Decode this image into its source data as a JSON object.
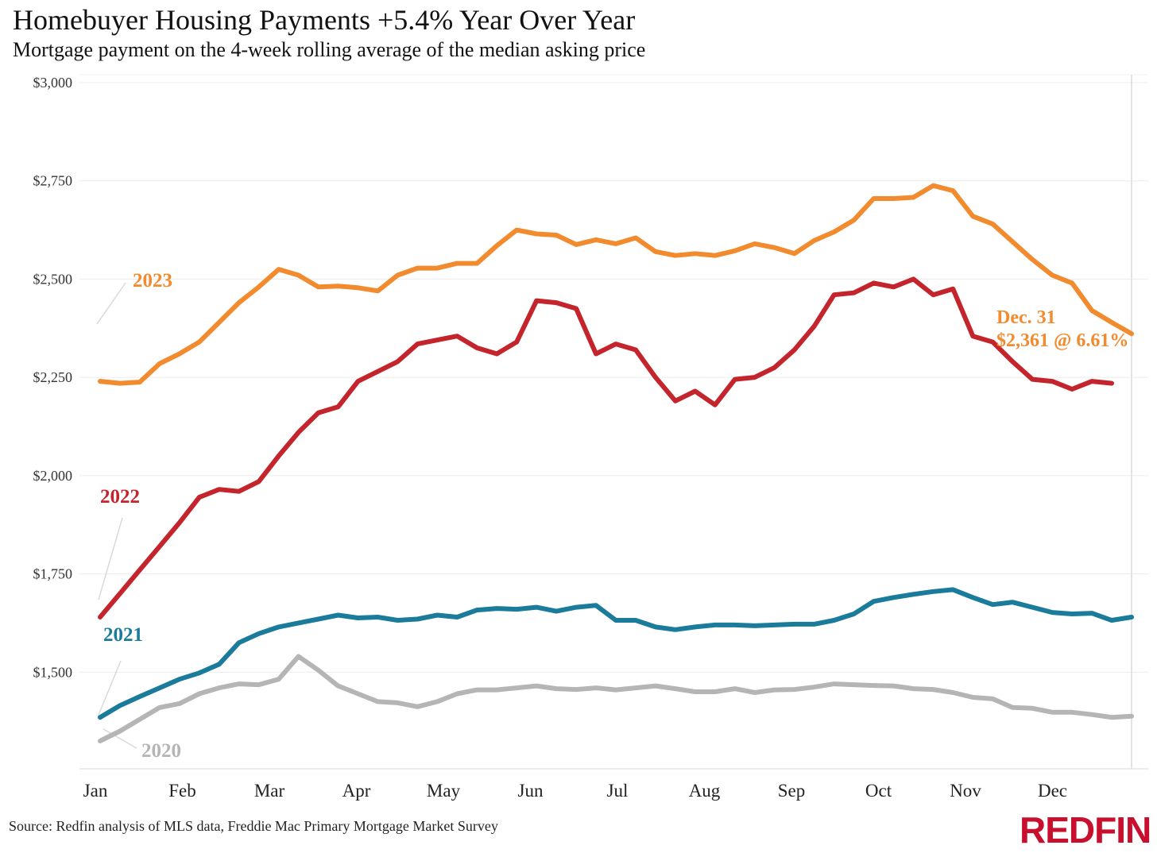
{
  "title": "Homebuyer Housing Payments +5.4% Year Over Year",
  "subtitle": "Mortgage payment on the 4-week rolling average of the median asking price",
  "source": "Source: Redfin analysis of MLS data, Freddie Mac Primary Mortgage Market Survey",
  "logo": "REDFIN",
  "chart_data": {
    "type": "line",
    "title": "Homebuyer Housing Payments +5.4% Year Over Year",
    "subtitle": "Mortgage payment on the 4-week rolling average of the median asking price",
    "xlabel": "",
    "ylabel": "",
    "x_ticks": [
      "Jan",
      "Feb",
      "Mar",
      "Apr",
      "May",
      "Jun",
      "Jul",
      "Aug",
      "Sep",
      "Oct",
      "Nov",
      "Dec"
    ],
    "y_ticks": [
      "$1,500",
      "$1,750",
      "$2,000",
      "$2,250",
      "$2,500",
      "$2,750",
      "$3,000"
    ],
    "y_tick_values": [
      1500,
      1750,
      2000,
      2250,
      2500,
      2750,
      3000
    ],
    "ylim": [
      1250,
      3000
    ],
    "x_unit": "week of year",
    "xlim": [
      1,
      53
    ],
    "grid": true,
    "series": [
      {
        "name": "2020",
        "color": "#b5b5b5",
        "x": [
          1,
          2,
          3,
          4,
          5,
          6,
          7,
          8,
          9,
          10,
          11,
          12,
          13,
          14,
          15,
          16,
          17,
          18,
          19,
          20,
          21,
          22,
          23,
          24,
          25,
          26,
          27,
          28,
          29,
          30,
          31,
          32,
          33,
          34,
          35,
          36,
          37,
          38,
          39,
          40,
          41,
          42,
          43,
          44,
          45,
          46,
          47,
          48,
          49,
          50,
          51,
          52,
          53
        ],
        "values": [
          1325,
          1350,
          1380,
          1410,
          1420,
          1445,
          1460,
          1470,
          1468,
          1482,
          1540,
          1505,
          1465,
          1445,
          1425,
          1422,
          1412,
          1425,
          1445,
          1455,
          1455,
          1460,
          1465,
          1458,
          1456,
          1460,
          1455,
          1460,
          1465,
          1458,
          1450,
          1450,
          1458,
          1448,
          1455,
          1456,
          1462,
          1470,
          1468,
          1466,
          1465,
          1458,
          1456,
          1448,
          1436,
          1432,
          1410,
          1408,
          1398,
          1398,
          1392,
          1385,
          1388
        ]
      },
      {
        "name": "2021",
        "color": "#1b7b9a",
        "x": [
          1,
          2,
          3,
          4,
          5,
          6,
          7,
          8,
          9,
          10,
          11,
          12,
          13,
          14,
          15,
          16,
          17,
          18,
          19,
          20,
          21,
          22,
          23,
          24,
          25,
          26,
          27,
          28,
          29,
          30,
          31,
          32,
          33,
          34,
          35,
          36,
          37,
          38,
          39,
          40,
          41,
          42,
          43,
          44,
          45,
          46,
          47,
          48,
          49,
          50,
          51,
          52,
          53
        ],
        "values": [
          1385,
          1415,
          1438,
          1460,
          1482,
          1498,
          1520,
          1575,
          1598,
          1615,
          1625,
          1635,
          1645,
          1638,
          1640,
          1632,
          1635,
          1645,
          1640,
          1658,
          1662,
          1660,
          1665,
          1655,
          1665,
          1670,
          1632,
          1632,
          1615,
          1608,
          1615,
          1620,
          1620,
          1618,
          1620,
          1622,
          1622,
          1632,
          1648,
          1680,
          1690,
          1698,
          1705,
          1710,
          1690,
          1672,
          1678,
          1665,
          1652,
          1648,
          1650,
          1632,
          1640
        ]
      },
      {
        "name": "2022",
        "color": "#c4242b",
        "x": [
          1,
          2,
          3,
          4,
          5,
          6,
          7,
          8,
          9,
          10,
          11,
          12,
          13,
          14,
          15,
          16,
          17,
          18,
          19,
          20,
          21,
          22,
          23,
          24,
          25,
          26,
          27,
          28,
          29,
          30,
          31,
          32,
          33,
          34,
          35,
          36,
          37,
          38,
          39,
          40,
          41,
          42,
          43,
          44,
          45,
          46,
          47,
          48,
          49,
          50,
          51,
          52
        ],
        "values": [
          1640,
          1700,
          1760,
          1820,
          1880,
          1945,
          1965,
          1960,
          1985,
          2050,
          2110,
          2160,
          2175,
          2240,
          2265,
          2290,
          2335,
          2345,
          2355,
          2325,
          2310,
          2340,
          2445,
          2440,
          2425,
          2310,
          2335,
          2320,
          2250,
          2190,
          2215,
          2180,
          2245,
          2250,
          2275,
          2320,
          2380,
          2460,
          2465,
          2490,
          2480,
          2500,
          2460,
          2475,
          2355,
          2340,
          2290,
          2245,
          2240,
          2220,
          2240,
          2235
        ]
      },
      {
        "name": "2023",
        "color": "#f28a2e",
        "x": [
          1,
          2,
          3,
          4,
          5,
          6,
          7,
          8,
          9,
          10,
          11,
          12,
          13,
          14,
          15,
          16,
          17,
          18,
          19,
          20,
          21,
          22,
          23,
          24,
          25,
          26,
          27,
          28,
          29,
          30,
          31,
          32,
          33,
          34,
          35,
          36,
          37,
          38,
          39,
          40,
          41,
          42,
          43,
          44,
          45,
          46,
          47,
          48,
          49,
          50,
          51,
          52,
          53
        ],
        "values": [
          2240,
          2235,
          2238,
          2285,
          2310,
          2340,
          2390,
          2440,
          2480,
          2525,
          2510,
          2480,
          2482,
          2478,
          2470,
          2510,
          2528,
          2528,
          2540,
          2540,
          2585,
          2625,
          2615,
          2612,
          2588,
          2600,
          2590,
          2605,
          2570,
          2560,
          2565,
          2560,
          2572,
          2590,
          2580,
          2565,
          2598,
          2620,
          2650,
          2705,
          2705,
          2708,
          2738,
          2725,
          2660,
          2640,
          2595,
          2550,
          2510,
          2490,
          2420,
          2390,
          2361
        ]
      }
    ],
    "annotations": [
      {
        "text": "2023",
        "color": "#f28a2e"
      },
      {
        "text": "2022",
        "color": "#c4242b"
      },
      {
        "text": "2021",
        "color": "#1b7b9a"
      },
      {
        "text": "2020",
        "color": "#b5b5b5"
      },
      {
        "text": "Dec. 31",
        "color": "#f28a2e"
      },
      {
        "text": "$2,361 @ 6.61%",
        "color": "#f28a2e"
      }
    ]
  }
}
